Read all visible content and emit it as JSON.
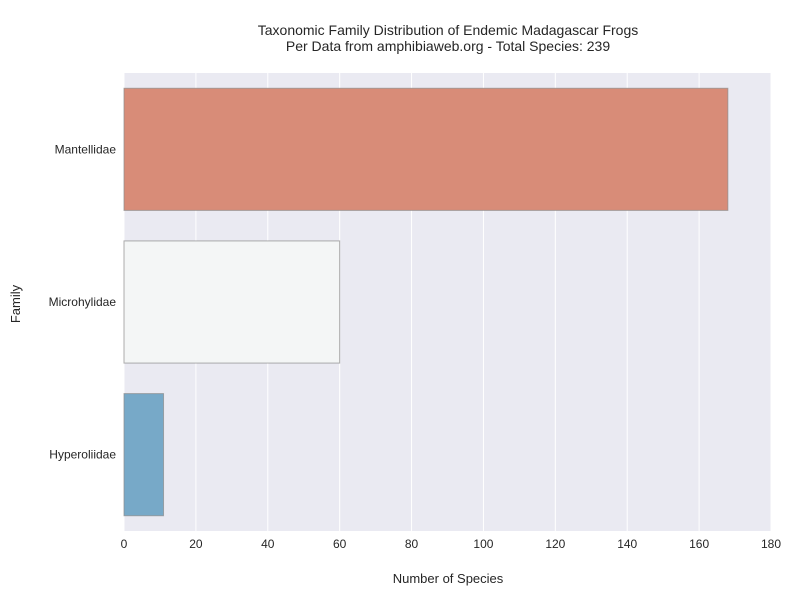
{
  "chart_data": {
    "type": "bar",
    "orientation": "horizontal",
    "title": "Taxonomic Family Distribution of Endemic Madagascar Frogs",
    "subtitle": "Per Data from amphibiaweb.org - Total Species: 239",
    "xlabel": "Number of Species",
    "ylabel": "Family",
    "categories": [
      "Mantellidae",
      "Microhylidae",
      "Hyperoliidae"
    ],
    "values": [
      168,
      60,
      11
    ],
    "bar_colors": [
      "#d88c78",
      "#f4f6f6",
      "#77a9c8"
    ],
    "xlim": [
      0,
      180
    ],
    "xticks": [
      0,
      20,
      40,
      60,
      80,
      100,
      120,
      140,
      160,
      180
    ],
    "grid": "vertical",
    "background": "#eaeaf2"
  }
}
